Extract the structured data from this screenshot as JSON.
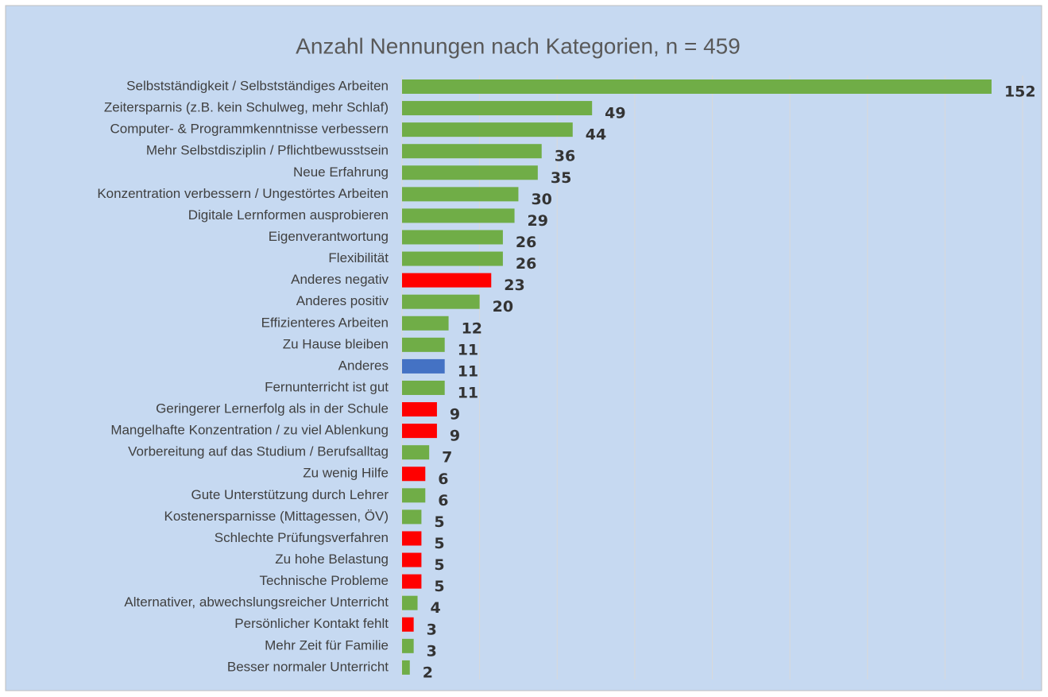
{
  "chart_data": {
    "type": "bar",
    "orientation": "horizontal",
    "title": "Anzahl Nennungen nach Kategorien, n = 459",
    "categories": [
      "Selbstständigkeit / Selbstständiges Arbeiten",
      "Zeitersparnis (z.B. kein Schulweg, mehr Schlaf)",
      "Computer- & Programmkenntnisse verbessern",
      "Mehr Selbstdisziplin / Pflichtbewusstsein",
      "Neue Erfahrung",
      "Konzentration verbessern / Ungestörtes Arbeiten",
      "Digitale Lernformen ausprobieren",
      "Eigenverantwortung",
      "Flexibilität",
      "Anderes negativ",
      "Anderes positiv",
      "Effizienteres Arbeiten",
      "Zu Hause bleiben",
      "Anderes",
      "Fernunterricht ist gut",
      "Geringerer Lernerfolg als in der Schule",
      "Mangelhafte Konzentration / zu viel Ablenkung",
      "Vorbereitung auf das Studium / Berufsalltag",
      "Zu wenig Hilfe",
      "Gute Unterstützung durch Lehrer",
      "Kostenersparnisse (Mittagessen, ÖV)",
      "Schlechte Prüfungsverfahren",
      "Zu hohe Belastung",
      "Technische Probleme",
      "Alternativer, abwechslungsreicher Unterricht",
      "Persönlicher Kontakt fehlt",
      "Mehr Zeit für Familie",
      "Besser normaler Unterricht"
    ],
    "values": [
      152,
      49,
      44,
      36,
      35,
      30,
      29,
      26,
      26,
      23,
      20,
      12,
      11,
      11,
      11,
      9,
      9,
      7,
      6,
      6,
      5,
      5,
      5,
      5,
      4,
      3,
      3,
      2
    ],
    "colors": [
      "#70ad47",
      "#70ad47",
      "#70ad47",
      "#70ad47",
      "#70ad47",
      "#70ad47",
      "#70ad47",
      "#70ad47",
      "#70ad47",
      "#ff0000",
      "#70ad47",
      "#70ad47",
      "#70ad47",
      "#4472c4",
      "#70ad47",
      "#ff0000",
      "#ff0000",
      "#70ad47",
      "#ff0000",
      "#70ad47",
      "#70ad47",
      "#ff0000",
      "#ff0000",
      "#ff0000",
      "#70ad47",
      "#ff0000",
      "#70ad47",
      "#70ad47"
    ],
    "xlim": [
      0,
      160
    ],
    "xticks": [
      0,
      20,
      40,
      60,
      80,
      100,
      120,
      140,
      160
    ],
    "grid": true
  }
}
